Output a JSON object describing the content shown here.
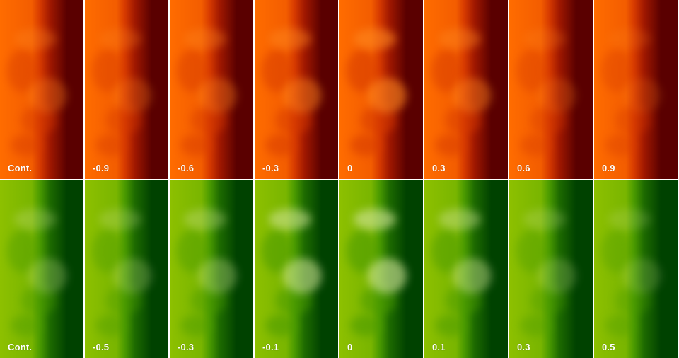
{
  "rows": [
    {
      "name": "red",
      "colors": {
        "bright": "#ff6c00",
        "mid": "#d63a00",
        "dark": "#a01800",
        "edge": "#5a0000"
      },
      "panels": [
        {
          "label": "Cont.",
          "contrast": 0.55
        },
        {
          "label": "-0.9",
          "contrast": 0.45
        },
        {
          "label": "-0.6",
          "contrast": 0.6
        },
        {
          "label": "-0.3",
          "contrast": 0.75
        },
        {
          "label": "0",
          "contrast": 0.9
        },
        {
          "label": "0.3",
          "contrast": 0.7
        },
        {
          "label": "0.6",
          "contrast": 0.35
        },
        {
          "label": "0.9",
          "contrast": 0.25
        }
      ]
    },
    {
      "name": "green",
      "colors": {
        "bright": "#8dc000",
        "mid": "#4a9a00",
        "dark": "#1d6a00",
        "edge": "#004200"
      },
      "panels": [
        {
          "label": "Cont.",
          "contrast": 0.45
        },
        {
          "label": "-0.5",
          "contrast": 0.4
        },
        {
          "label": "-0.3",
          "contrast": 0.55
        },
        {
          "label": "-0.1",
          "contrast": 0.85
        },
        {
          "label": "0",
          "contrast": 0.9
        },
        {
          "label": "0.1",
          "contrast": 0.7
        },
        {
          "label": "0.3",
          "contrast": 0.35
        },
        {
          "label": "0.5",
          "contrast": 0.25
        }
      ]
    }
  ]
}
